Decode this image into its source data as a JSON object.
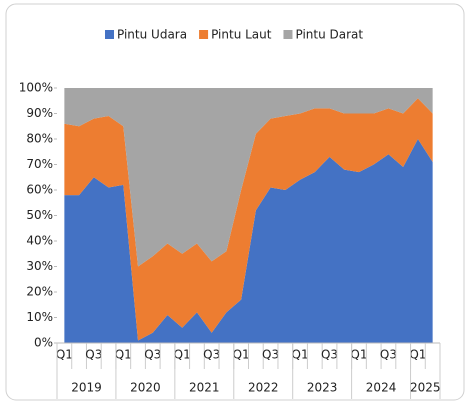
{
  "chart_data": {
    "type": "area",
    "stacked": true,
    "categories": [
      "Q1",
      null,
      "Q3",
      null,
      "Q1",
      null,
      "Q3",
      null,
      "Q1",
      null,
      "Q3",
      null,
      "Q1",
      null,
      "Q3",
      null,
      "Q1",
      null,
      "Q3",
      null,
      "Q1",
      null,
      "Q3",
      null,
      "Q1",
      null
    ],
    "years": [
      "2019",
      "2020",
      "2021",
      "2022",
      "2023",
      "2024",
      "2025"
    ],
    "series": [
      {
        "name": "Pintu Udara",
        "color": "#4472c4",
        "values": [
          58,
          58,
          65,
          61,
          62,
          1,
          4,
          11,
          6,
          12,
          4,
          12,
          17,
          52,
          61,
          60,
          64,
          67,
          73,
          68,
          67,
          70,
          74,
          69,
          80,
          71
        ]
      },
      {
        "name": "Pintu Laut",
        "color": "#ed7d31",
        "values": [
          28,
          27,
          23,
          28,
          23,
          29,
          30,
          28,
          29,
          27,
          28,
          24,
          43,
          30,
          27,
          29,
          26,
          25,
          19,
          22,
          23,
          20,
          18,
          21,
          16,
          19
        ]
      },
      {
        "name": "Pintu Darat",
        "color": "#a5a5a5",
        "values": [
          14,
          15,
          12,
          11,
          15,
          70,
          66,
          61,
          65,
          61,
          68,
          64,
          40,
          18,
          12,
          11,
          10,
          8,
          8,
          10,
          10,
          10,
          8,
          10,
          4,
          10
        ]
      }
    ],
    "ylim": [
      0,
      100
    ],
    "yticks": [
      {
        "value": 0,
        "label": "0%"
      },
      {
        "value": 10,
        "label": "10%"
      },
      {
        "value": 20,
        "label": "20%"
      },
      {
        "value": 30,
        "label": "30%"
      },
      {
        "value": 40,
        "label": "40%"
      },
      {
        "value": 50,
        "label": "50%"
      },
      {
        "value": 60,
        "label": "60%"
      },
      {
        "value": 70,
        "label": "70%"
      },
      {
        "value": 80,
        "label": "80%"
      },
      {
        "value": 90,
        "label": "90%"
      },
      {
        "value": 100,
        "label": "100%"
      }
    ],
    "legend": "top"
  }
}
